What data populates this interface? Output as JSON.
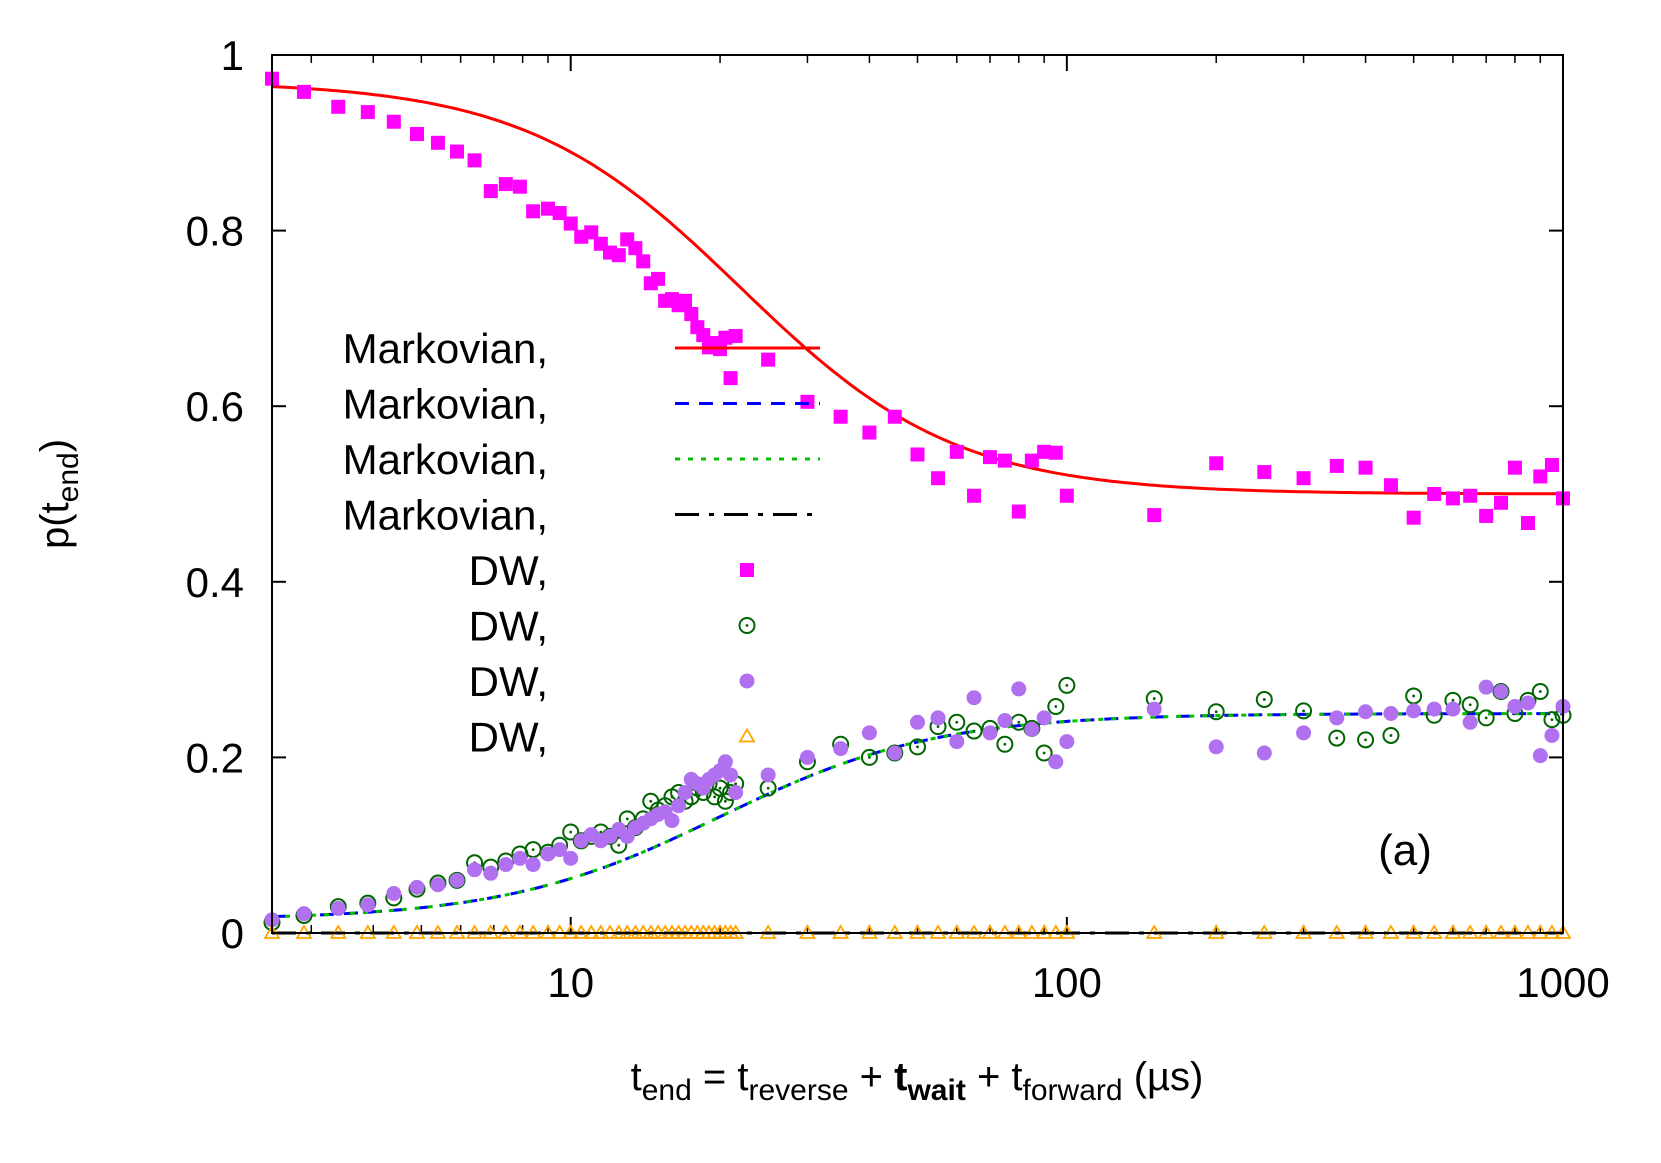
{
  "chart_data": {
    "type": "scatter",
    "title": "",
    "panel_label": "(a)",
    "xscale": "log",
    "xlim": [
      2.5,
      1000
    ],
    "ylim": [
      0,
      1
    ],
    "xticks": [
      10,
      100,
      1000
    ],
    "xtick_labels": [
      "10",
      "100",
      "1000"
    ],
    "yticks": [
      0,
      0.2,
      0.4,
      0.6,
      0.8,
      1
    ],
    "ytick_labels": [
      "0",
      "0.2",
      "0.4",
      "0.6",
      "0.8",
      "1"
    ],
    "xlabel": {
      "parts": [
        {
          "text": "t",
          "style": "normal"
        },
        {
          "text": "end",
          "style": "sub"
        },
        {
          "text": " = t",
          "style": "normal"
        },
        {
          "text": "reverse",
          "style": "sub"
        },
        {
          "text": " + ",
          "style": "normal"
        },
        {
          "text": "t",
          "style": "bold"
        },
        {
          "text": "wait",
          "style": "boldsub"
        },
        {
          "text": " + t",
          "style": "normal"
        },
        {
          "text": "forward",
          "style": "sub"
        },
        {
          "text": " (µs)",
          "style": "normal"
        }
      ]
    },
    "ylabel": {
      "parts": [
        {
          "text": "p(t",
          "style": "normal"
        },
        {
          "text": "end",
          "style": "sub"
        },
        {
          "text": ")",
          "style": "normal"
        }
      ]
    },
    "colors": {
      "markovian_1": "#ff0000",
      "markovian_2": "#0000ff",
      "markovian_3": "#00c000",
      "markovian_4": "#000000",
      "dw_1": "#ff00ff",
      "dw_2": "#006400",
      "dw_3": "#b070f0",
      "dw_4": "#ffa500"
    },
    "legend": {
      "position": "center-left",
      "entries": [
        {
          "label": "Markovian,",
          "kind": "line",
          "dash": "solid",
          "color_key": "markovian_1"
        },
        {
          "label": "Markovian,",
          "kind": "line",
          "dash": "dashed",
          "color_key": "markovian_2"
        },
        {
          "label": "Markovian,",
          "kind": "line",
          "dash": "dotted",
          "color_key": "markovian_3"
        },
        {
          "label": "Markovian,",
          "kind": "line",
          "dash": "dashdot",
          "color_key": "markovian_4"
        },
        {
          "label": "DW,",
          "kind": "marker",
          "marker": "filled-square",
          "color_key": "dw_1"
        },
        {
          "label": "DW,",
          "kind": "marker",
          "marker": "dotted-circle",
          "color_key": "dw_2"
        },
        {
          "label": "DW,",
          "kind": "marker",
          "marker": "filled-circle",
          "color_key": "dw_3"
        },
        {
          "label": "DW,",
          "kind": "marker",
          "marker": "open-triangle",
          "color_key": "dw_4"
        }
      ]
    },
    "curves": [
      {
        "name": "Markovian, 1",
        "color_key": "markovian_1",
        "dash": "solid",
        "model": "sigmoid",
        "start": 0.97,
        "end": 0.5,
        "tau": 22
      },
      {
        "name": "Markovian, 2",
        "color_key": "markovian_2",
        "dash": "dashed",
        "model": "sigmoid",
        "start": 0.015,
        "end": 0.25,
        "tau": 20
      },
      {
        "name": "Markovian, 3",
        "color_key": "markovian_3",
        "dash": "dotted",
        "model": "sigmoid",
        "start": 0.015,
        "end": 0.25,
        "tau": 20
      },
      {
        "name": "Markovian, 4",
        "color_key": "markovian_4",
        "dash": "dashdot",
        "model": "constant",
        "start": 0,
        "end": 0,
        "tau": 1
      }
    ],
    "series": [
      {
        "name": "DW, 1",
        "marker": "filled-square",
        "color_key": "dw_1",
        "x": [
          2.5,
          2.9,
          3.4,
          3.9,
          4.4,
          4.9,
          5.4,
          5.9,
          6.4,
          6.9,
          7.4,
          7.9,
          8.4,
          9.0,
          9.5,
          10.0,
          10.5,
          11.0,
          11.5,
          12.0,
          12.5,
          13.0,
          13.5,
          14.0,
          14.5,
          15.0,
          15.5,
          16.0,
          16.5,
          17.0,
          17.5,
          18.0,
          18.5,
          19.0,
          19.5,
          20.0,
          20.5,
          21.0,
          21.5,
          25,
          30,
          35,
          40,
          45,
          50,
          55,
          60,
          65,
          70,
          75,
          80,
          85,
          90,
          95,
          100,
          150,
          200,
          250,
          300,
          350,
          400,
          450,
          500,
          550,
          600,
          650,
          700,
          750,
          800,
          850,
          900,
          950,
          1000
        ],
        "y": [
          0.973,
          0.958,
          0.941,
          0.935,
          0.924,
          0.91,
          0.9,
          0.89,
          0.88,
          0.845,
          0.853,
          0.85,
          0.822,
          0.825,
          0.82,
          0.808,
          0.793,
          0.798,
          0.785,
          0.775,
          0.772,
          0.79,
          0.78,
          0.765,
          0.74,
          0.745,
          0.72,
          0.722,
          0.715,
          0.72,
          0.705,
          0.69,
          0.681,
          0.667,
          0.672,
          0.665,
          0.678,
          0.632,
          0.68,
          0.653,
          0.605,
          0.588,
          0.57,
          0.588,
          0.545,
          0.518,
          0.548,
          0.498,
          0.542,
          0.538,
          0.48,
          0.538,
          0.548,
          0.547,
          0.498,
          0.476,
          0.535,
          0.525,
          0.518,
          0.532,
          0.53,
          0.51,
          0.473,
          0.5,
          0.495,
          0.498,
          0.475,
          0.49,
          0.53,
          0.467,
          0.52,
          0.533,
          0.495
        ]
      },
      {
        "name": "DW, 2",
        "marker": "dotted-circle",
        "color_key": "dw_2",
        "x": [
          2.5,
          2.9,
          3.4,
          3.9,
          4.4,
          4.9,
          5.4,
          5.9,
          6.4,
          6.9,
          7.4,
          7.9,
          8.4,
          9.0,
          9.5,
          10.0,
          10.5,
          11.0,
          11.5,
          12.0,
          12.5,
          13.0,
          13.5,
          14.0,
          14.5,
          15.0,
          15.5,
          16.0,
          16.5,
          17.0,
          17.5,
          18.0,
          18.5,
          19.0,
          19.5,
          20.0,
          20.5,
          21.0,
          21.5,
          25,
          30,
          35,
          40,
          45,
          50,
          55,
          60,
          65,
          70,
          75,
          80,
          85,
          90,
          95,
          100,
          150,
          200,
          250,
          300,
          350,
          400,
          450,
          500,
          550,
          600,
          650,
          700,
          750,
          800,
          850,
          900,
          950,
          1000
        ],
        "y": [
          0.012,
          0.02,
          0.03,
          0.034,
          0.04,
          0.05,
          0.057,
          0.06,
          0.08,
          0.075,
          0.082,
          0.09,
          0.095,
          0.092,
          0.1,
          0.115,
          0.105,
          0.11,
          0.115,
          0.11,
          0.1,
          0.13,
          0.12,
          0.13,
          0.15,
          0.14,
          0.145,
          0.155,
          0.16,
          0.15,
          0.155,
          0.165,
          0.16,
          0.17,
          0.155,
          0.165,
          0.15,
          0.16,
          0.17,
          0.165,
          0.195,
          0.215,
          0.2,
          0.205,
          0.212,
          0.235,
          0.24,
          0.23,
          0.233,
          0.215,
          0.24,
          0.233,
          0.205,
          0.258,
          0.282,
          0.267,
          0.252,
          0.266,
          0.253,
          0.222,
          0.22,
          0.225,
          0.27,
          0.248,
          0.265,
          0.26,
          0.245,
          0.275,
          0.25,
          0.265,
          0.275,
          0.243,
          0.248
        ]
      },
      {
        "name": "DW, 3",
        "marker": "filled-circle",
        "color_key": "dw_3",
        "x": [
          2.5,
          2.9,
          3.4,
          3.9,
          4.4,
          4.9,
          5.4,
          5.9,
          6.4,
          6.9,
          7.4,
          7.9,
          8.4,
          9.0,
          9.5,
          10.0,
          10.5,
          11.0,
          11.5,
          12.0,
          12.5,
          13.0,
          13.5,
          14.0,
          14.5,
          15.0,
          15.5,
          16.0,
          16.5,
          17.0,
          17.5,
          18.0,
          18.5,
          19.0,
          19.5,
          20.0,
          20.5,
          21.0,
          21.5,
          25,
          30,
          35,
          40,
          45,
          50,
          55,
          60,
          65,
          70,
          75,
          80,
          85,
          90,
          95,
          100,
          150,
          200,
          250,
          300,
          350,
          400,
          450,
          500,
          550,
          600,
          650,
          700,
          750,
          800,
          850,
          900,
          950,
          1000
        ],
        "y": [
          0.015,
          0.022,
          0.028,
          0.032,
          0.045,
          0.052,
          0.055,
          0.06,
          0.072,
          0.068,
          0.078,
          0.085,
          0.078,
          0.09,
          0.095,
          0.085,
          0.105,
          0.112,
          0.105,
          0.11,
          0.118,
          0.11,
          0.12,
          0.125,
          0.13,
          0.135,
          0.138,
          0.128,
          0.145,
          0.16,
          0.175,
          0.17,
          0.165,
          0.175,
          0.18,
          0.185,
          0.195,
          0.18,
          0.16,
          0.18,
          0.2,
          0.21,
          0.228,
          0.205,
          0.24,
          0.245,
          0.218,
          0.268,
          0.228,
          0.242,
          0.278,
          0.232,
          0.245,
          0.195,
          0.218,
          0.255,
          0.212,
          0.205,
          0.228,
          0.245,
          0.252,
          0.25,
          0.253,
          0.255,
          0.255,
          0.24,
          0.28,
          0.275,
          0.258,
          0.262,
          0.202,
          0.225,
          0.258
        ]
      },
      {
        "name": "DW, 4",
        "marker": "open-triangle",
        "color_key": "dw_4",
        "x": [
          2.5,
          2.9,
          3.4,
          3.9,
          4.4,
          4.9,
          5.4,
          5.9,
          6.4,
          6.9,
          7.4,
          7.9,
          8.4,
          9.0,
          9.5,
          10.0,
          10.5,
          11.0,
          11.5,
          12.0,
          12.5,
          13.0,
          13.5,
          14.0,
          14.5,
          15.0,
          15.5,
          16.0,
          16.5,
          17.0,
          17.5,
          18.0,
          18.5,
          19.0,
          19.5,
          20.0,
          20.5,
          21.0,
          21.5,
          25,
          30,
          35,
          40,
          45,
          50,
          55,
          60,
          65,
          70,
          75,
          80,
          85,
          90,
          95,
          100,
          150,
          200,
          250,
          300,
          350,
          400,
          450,
          500,
          550,
          600,
          650,
          700,
          750,
          800,
          850,
          900,
          950,
          1000
        ],
        "y": [
          0.0,
          0.0,
          0.0,
          0.0,
          0.0,
          0.0,
          0.0,
          0.0,
          0.0,
          0.0,
          0.0,
          0.0,
          0.0,
          0.0,
          0.0,
          0.0,
          0.0,
          0.0,
          0.0,
          0.0,
          0.0,
          0.0,
          0.0,
          0.0,
          0.0,
          0.0,
          0.0,
          0.0,
          0.0,
          0.0,
          0.0,
          0.0,
          0.0,
          0.0,
          0.0,
          0.0,
          0.0,
          0.0,
          0.0,
          0.0,
          0.0,
          0.0,
          0.0,
          0.0,
          0.0,
          0.0,
          0.0,
          0.0,
          0.0,
          0.0,
          0.0,
          0.0,
          0.0,
          0.0,
          0.0,
          0.0,
          0.0,
          0.0,
          0.0,
          0.0,
          0.0,
          0.0,
          0.0,
          0.0,
          0.0,
          0.0,
          0.0,
          0.0,
          0.0,
          0.0,
          0.0,
          0.0,
          0.0
        ]
      }
    ]
  }
}
